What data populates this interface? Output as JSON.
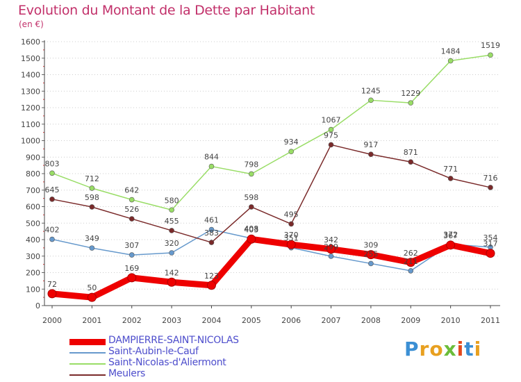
{
  "title": "Evolution du Montant de la Dette par Habitant",
  "unit": "(en €)",
  "brand": {
    "letters": [
      {
        "ch": "P",
        "color": "#3b8fd4"
      },
      {
        "ch": "r",
        "color": "#e8a020"
      },
      {
        "ch": "o",
        "color": "#e8a020"
      },
      {
        "ch": "x",
        "color": "#6bbd3a"
      },
      {
        "ch": "i",
        "color": "#e34a1e"
      },
      {
        "ch": "t",
        "color": "#3b8fd4"
      },
      {
        "ch": "i",
        "color": "#e8a020"
      }
    ]
  },
  "chart_data": {
    "type": "line",
    "title": "Evolution du Montant de la Dette par Habitant",
    "ylabel": "(en €)",
    "xlabel": "",
    "ylim": [
      0,
      1600
    ],
    "ytick_step": 100,
    "grid": "horizontal dotted",
    "legend": "bottom-left",
    "categories": [
      "2000",
      "2001",
      "2002",
      "2003",
      "2004",
      "2005",
      "2006",
      "2007",
      "2008",
      "2009",
      "2010",
      "2011"
    ],
    "series": [
      {
        "name": "DAMPIERRE-SAINT-NICOLAS",
        "color": "#ee0000",
        "thick": true,
        "values": [
          72,
          50,
          169,
          142,
          123,
          403,
          370,
          342,
          309,
          262,
          367,
          317
        ]
      },
      {
        "name": "Saint-Aubin-le-Cauf",
        "color": "#6699cc",
        "thick": false,
        "values": [
          402,
          349,
          307,
          320,
          461,
          408,
          351,
          299,
          255,
          211,
          372,
          354
        ]
      },
      {
        "name": "Saint-Nicolas-d'Aliermont",
        "color": "#99dd66",
        "thick": false,
        "values": [
          803,
          712,
          642,
          580,
          844,
          798,
          934,
          1067,
          1245,
          1229,
          1484,
          1519
        ]
      },
      {
        "name": "Meulers",
        "color": "#7a2a2a",
        "thick": false,
        "values": [
          645,
          598,
          526,
          455,
          383,
          598,
          495,
          975,
          917,
          871,
          771,
          716
        ]
      }
    ]
  }
}
